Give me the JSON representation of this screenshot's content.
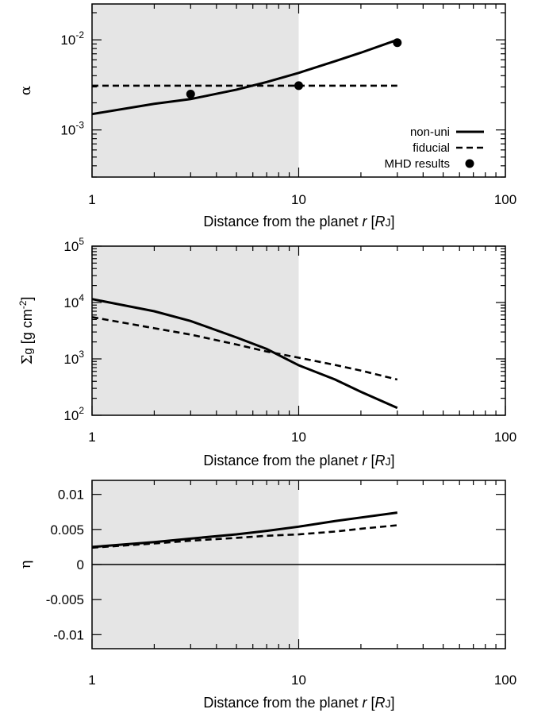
{
  "chart_data": [
    {
      "type": "line",
      "panel": "alpha",
      "xlabel": "Distance from the planet r [RJ]",
      "ylabel": "α",
      "xscale": "log",
      "yscale": "log",
      "xlim": [
        1,
        100
      ],
      "ylim": [
        0.0003,
        0.025
      ],
      "xticks": [
        "1",
        "10",
        "100"
      ],
      "yticks": [
        {
          "base": "10",
          "exp": "-3",
          "value": 0.001
        },
        {
          "base": "10",
          "exp": "-2",
          "value": 0.01
        }
      ],
      "shaded_x": [
        1,
        10
      ],
      "legend": {
        "position": "bottom-right",
        "entries": [
          "non-uni",
          "fiducial",
          "MHD results"
        ]
      },
      "series": [
        {
          "name": "non-uni",
          "style": "solid",
          "x": [
            1,
            2,
            3,
            5,
            7,
            10,
            15,
            20,
            30
          ],
          "y": [
            0.0015,
            0.00195,
            0.0022,
            0.0028,
            0.0034,
            0.0043,
            0.0058,
            0.0072,
            0.01
          ]
        },
        {
          "name": "fiducial",
          "style": "dashed",
          "x": [
            1,
            30
          ],
          "y": [
            0.0031,
            0.0031
          ]
        },
        {
          "name": "MHD results",
          "style": "points",
          "x": [
            3,
            10,
            30
          ],
          "y": [
            0.0025,
            0.0031,
            0.0093
          ]
        }
      ]
    },
    {
      "type": "line",
      "panel": "sigma",
      "xlabel": "Distance from the planet r [RJ]",
      "ylabel": "Σg [g cm-2]",
      "xscale": "log",
      "yscale": "log",
      "xlim": [
        1,
        100
      ],
      "ylim": [
        100,
        100000
      ],
      "xticks": [
        "1",
        "10",
        "100"
      ],
      "yticks": [
        {
          "base": "10",
          "exp": "2",
          "value": 100
        },
        {
          "base": "10",
          "exp": "3",
          "value": 1000
        },
        {
          "base": "10",
          "exp": "4",
          "value": 10000
        },
        {
          "base": "10",
          "exp": "5",
          "value": 100000
        }
      ],
      "shaded_x": [
        1,
        10
      ],
      "series": [
        {
          "name": "non-uni",
          "style": "solid",
          "x": [
            1,
            2,
            3,
            5,
            7,
            10,
            15,
            20,
            30
          ],
          "y": [
            11500,
            7000,
            4700,
            2400,
            1500,
            770,
            430,
            260,
            135
          ]
        },
        {
          "name": "fiducial",
          "style": "dashed",
          "x": [
            1,
            2,
            3,
            5,
            7,
            10,
            15,
            20,
            30
          ],
          "y": [
            5500,
            3500,
            2700,
            1800,
            1350,
            1050,
            780,
            620,
            430
          ]
        }
      ]
    },
    {
      "type": "line",
      "panel": "eta",
      "xlabel": "Distance from the planet r [RJ]",
      "ylabel": "η",
      "xscale": "log",
      "yscale": "linear",
      "xlim": [
        1,
        100
      ],
      "ylim": [
        -0.012,
        0.012
      ],
      "xticks": [
        "1",
        "10",
        "100"
      ],
      "yticks": [
        {
          "label": "0.01",
          "value": 0.01
        },
        {
          "label": "0.005",
          "value": 0.005
        },
        {
          "label": "0",
          "value": 0
        },
        {
          "label": "-0.005",
          "value": -0.005
        },
        {
          "label": "-0.01",
          "value": -0.01
        }
      ],
      "shaded_x": [
        1,
        10
      ],
      "series": [
        {
          "name": "non-uni",
          "style": "solid",
          "x": [
            1,
            2,
            3,
            5,
            7,
            10,
            15,
            20,
            30
          ],
          "y": [
            0.0025,
            0.0032,
            0.0037,
            0.0043,
            0.0048,
            0.0054,
            0.0062,
            0.0067,
            0.0074
          ]
        },
        {
          "name": "fiducial",
          "style": "dashed",
          "x": [
            1,
            2,
            3,
            5,
            7,
            10,
            15,
            20,
            30
          ],
          "y": [
            0.0024,
            0.003,
            0.0034,
            0.0038,
            0.0041,
            0.0043,
            0.0047,
            0.0051,
            0.0056
          ]
        },
        {
          "name": "zero",
          "style": "thin",
          "x": [
            1,
            100
          ],
          "y": [
            0,
            0
          ]
        }
      ]
    }
  ]
}
